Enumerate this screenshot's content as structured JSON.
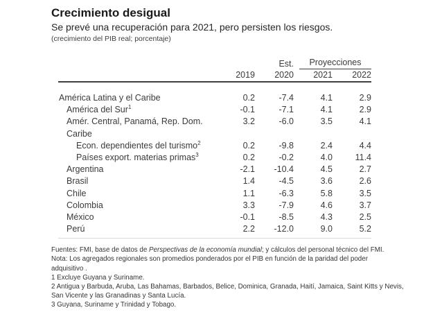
{
  "header": {
    "title": "Crecimiento desigual",
    "subtitle": "Se prevé una recuperación para 2021, pero persisten los riesgos.",
    "caption": "(crecimiento del PIB real; porcentaje)"
  },
  "colors": {
    "text": "#3a3a3a",
    "title": "#1a1a1a",
    "rule": "#3e3e3e"
  },
  "chart_data": {
    "type": "table",
    "title": "Crecimiento desigual",
    "subtitle": "Se prevé una recuperación para 2021, pero persisten los riesgos.",
    "unit": "crecimiento del PIB real; porcentaje",
    "column_groups": {
      "est_label": "Est.",
      "projections_label": "Proyecciones"
    },
    "columns": [
      "2019",
      "2020",
      "2021",
      "2022"
    ],
    "rows": [
      {
        "label": "América Latina y el Caribe",
        "values": [
          0.2,
          -7.4,
          4.1,
          2.9
        ]
      },
      {
        "label": "América del Sur",
        "sup": "1",
        "values": [
          -0.1,
          -7.1,
          4.1,
          2.9
        ]
      },
      {
        "label": "Amér. Central, Panamá, Rep. Dom.",
        "values": [
          3.2,
          -6.0,
          3.5,
          4.1
        ]
      },
      {
        "label": "Caribe",
        "values": [
          null,
          null,
          null,
          null
        ]
      },
      {
        "label": "Econ. dependientes del turismo",
        "sup": "2",
        "values": [
          0.2,
          -9.8,
          2.4,
          4.4
        ]
      },
      {
        "label": "Países export. materias primas",
        "sup": "3",
        "values": [
          0.2,
          -0.2,
          4.0,
          11.4
        ]
      },
      {
        "label": "Argentina",
        "values": [
          -2.1,
          -10.4,
          4.5,
          2.7
        ]
      },
      {
        "label": "Brasil",
        "values": [
          1.4,
          -4.5,
          3.6,
          2.6
        ]
      },
      {
        "label": "Chile",
        "values": [
          1.1,
          -6.3,
          5.8,
          3.5
        ]
      },
      {
        "label": "Colombia",
        "values": [
          3.3,
          -7.9,
          4.6,
          3.7
        ]
      },
      {
        "label": "México",
        "values": [
          -0.1,
          -8.5,
          4.3,
          2.5
        ]
      },
      {
        "label": "Perú",
        "values": [
          2.2,
          -12.0,
          9.0,
          5.2
        ]
      }
    ]
  },
  "footnotes": {
    "source": {
      "prefix": "Fuentes: FMI, base de datos de ",
      "italic": "Perspectivas de la economía mundial",
      "suffix": "; y cálculos del personal técnico del FMI."
    },
    "note_line1": "Nota: Los agregados regionales son promedios ponderados por el PIB en función de la paridad del poder",
    "note_line2": "adquisitivo .",
    "fn1": "1 Excluye Guyana y Suriname.",
    "fn2_line1": "2 Antigua y Barbuda, Aruba, Las Bahamas, Barbados, Belice, Dominica, Granada, Haití, Jamaica, Saint Kitts y Nevis,",
    "fn2_line2": "San Vicente y las Granadinas  y Santa Lucía.",
    "fn3": "3 Guyana, Suriname y Trinidad y Tobago."
  }
}
